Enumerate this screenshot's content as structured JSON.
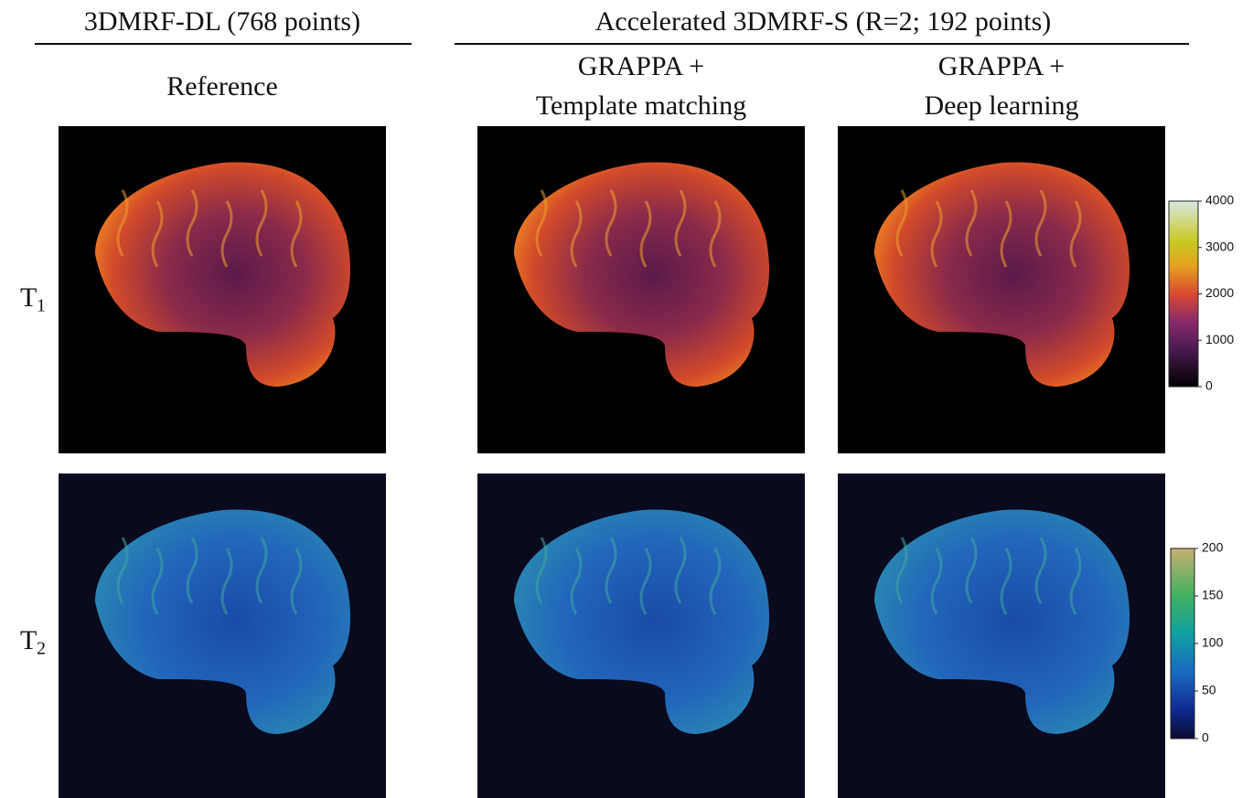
{
  "headers": [
    {
      "title": "3DMRF-DL (768 points)"
    },
    {
      "title": "Accelerated 3DMRF-S (R=2; 192 points)"
    }
  ],
  "columns": [
    {
      "lines": [
        "Reference"
      ]
    },
    {
      "lines": [
        "GRAPPA +",
        "Template matching"
      ]
    },
    {
      "lines": [
        "GRAPPA +",
        "Deep learning"
      ]
    }
  ],
  "rows": [
    {
      "label": "T",
      "subscript": "1"
    },
    {
      "label": "T",
      "subscript": "2"
    }
  ],
  "colorbars": [
    {
      "lim": [
        0,
        4000
      ],
      "ticks": [
        0,
        1000,
        2000,
        3000,
        4000
      ]
    },
    {
      "lim": [
        0,
        200
      ],
      "ticks": [
        0,
        50,
        100,
        150,
        200
      ]
    }
  ]
}
